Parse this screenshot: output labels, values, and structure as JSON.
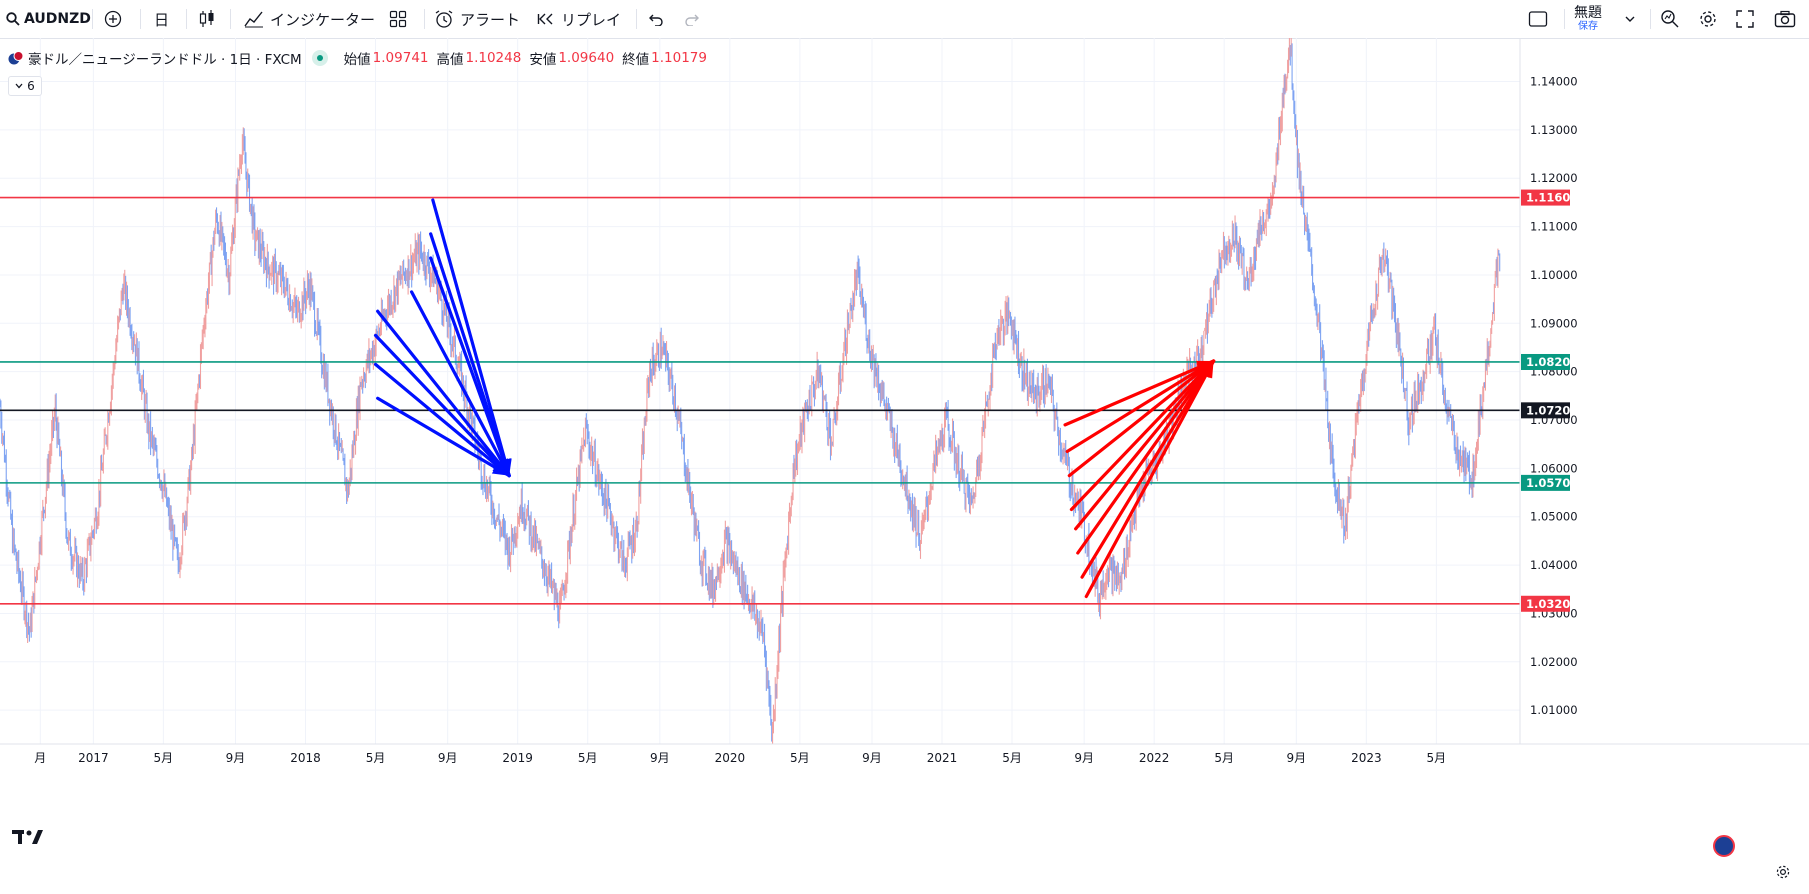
{
  "toolbar": {
    "symbol": "AUDNZD",
    "interval": "日",
    "indicators_label": "インジケーター",
    "alert_label": "アラート",
    "replay_label": "リプレイ",
    "layout_name": "無題",
    "save_label": "保存"
  },
  "legend": {
    "title": "豪ドル／ニュージーランドドル · 1日 · FXCM",
    "open_label": "始値",
    "open": "1.09741",
    "high_label": "高値",
    "high": "1.10248",
    "low_label": "安値",
    "low": "1.09640",
    "close_label": "終値",
    "close": "1.10179",
    "collapse_count": "6"
  },
  "colors": {
    "accent": "#2962ff",
    "down": "#f23645",
    "up": "#089981",
    "candle_up": "#7ea3f2",
    "candle_down": "#f0a0a0",
    "blue_arrow": "#0010ff",
    "red_arrow": "#ff0000"
  },
  "chart_data": {
    "type": "line",
    "symbol": "AUDNZD",
    "ylim": [
      1.003,
      1.149
    ],
    "y_ticks": [
      1.01,
      1.02,
      1.03,
      1.04,
      1.05,
      1.06,
      1.07,
      1.08,
      1.09,
      1.1,
      1.11,
      1.12,
      1.13,
      1.14
    ],
    "y_tick_labels": [
      "1.01000",
      "1.02000",
      "1.03000",
      "1.04000",
      "1.05000",
      "1.06000",
      "1.07000",
      "1.08000",
      "1.09000",
      "1.10000",
      "1.11000",
      "1.12000",
      "1.13000",
      "1.14000"
    ],
    "x_labels": [
      {
        "t": 2016.75,
        "label": "月"
      },
      {
        "t": 2017.0,
        "label": "2017"
      },
      {
        "t": 2017.33,
        "label": "5月"
      },
      {
        "t": 2017.67,
        "label": "9月"
      },
      {
        "t": 2018.0,
        "label": "2018"
      },
      {
        "t": 2018.33,
        "label": "5月"
      },
      {
        "t": 2018.67,
        "label": "9月"
      },
      {
        "t": 2019.0,
        "label": "2019"
      },
      {
        "t": 2019.33,
        "label": "5月"
      },
      {
        "t": 2019.67,
        "label": "9月"
      },
      {
        "t": 2020.0,
        "label": "2020"
      },
      {
        "t": 2020.33,
        "label": "5月"
      },
      {
        "t": 2020.67,
        "label": "9月"
      },
      {
        "t": 2021.0,
        "label": "2021"
      },
      {
        "t": 2021.33,
        "label": "5月"
      },
      {
        "t": 2021.67,
        "label": "9月"
      },
      {
        "t": 2022.0,
        "label": "2022"
      },
      {
        "t": 2022.33,
        "label": "5月"
      },
      {
        "t": 2022.67,
        "label": "9月"
      },
      {
        "t": 2023.0,
        "label": "2023"
      },
      {
        "t": 2023.33,
        "label": "5月"
      }
    ],
    "xlim": [
      2016.56,
      2023.63
    ],
    "price_path": [
      [
        2016.56,
        1.073
      ],
      [
        2016.62,
        1.045
      ],
      [
        2016.7,
        1.026
      ],
      [
        2016.76,
        1.05
      ],
      [
        2016.82,
        1.072
      ],
      [
        2016.88,
        1.045
      ],
      [
        2016.95,
        1.037
      ],
      [
        2017.02,
        1.052
      ],
      [
        2017.08,
        1.075
      ],
      [
        2017.14,
        1.098
      ],
      [
        2017.2,
        1.085
      ],
      [
        2017.26,
        1.068
      ],
      [
        2017.33,
        1.056
      ],
      [
        2017.4,
        1.04
      ],
      [
        2017.46,
        1.06
      ],
      [
        2017.52,
        1.09
      ],
      [
        2017.58,
        1.112
      ],
      [
        2017.64,
        1.1
      ],
      [
        2017.7,
        1.128
      ],
      [
        2017.76,
        1.108
      ],
      [
        2017.82,
        1.102
      ],
      [
        2017.9,
        1.098
      ],
      [
        2017.96,
        1.092
      ],
      [
        2018.02,
        1.098
      ],
      [
        2018.08,
        1.082
      ],
      [
        2018.14,
        1.068
      ],
      [
        2018.2,
        1.055
      ],
      [
        2018.26,
        1.078
      ],
      [
        2018.32,
        1.085
      ],
      [
        2018.38,
        1.093
      ],
      [
        2018.46,
        1.1
      ],
      [
        2018.54,
        1.105
      ],
      [
        2018.62,
        1.098
      ],
      [
        2018.7,
        1.085
      ],
      [
        2018.78,
        1.07
      ],
      [
        2018.84,
        1.058
      ],
      [
        2018.9,
        1.05
      ],
      [
        2018.96,
        1.043
      ],
      [
        2019.02,
        1.053
      ],
      [
        2019.08,
        1.045
      ],
      [
        2019.14,
        1.038
      ],
      [
        2019.2,
        1.03
      ],
      [
        2019.26,
        1.05
      ],
      [
        2019.32,
        1.068
      ],
      [
        2019.38,
        1.058
      ],
      [
        2019.44,
        1.05
      ],
      [
        2019.5,
        1.04
      ],
      [
        2019.56,
        1.048
      ],
      [
        2019.62,
        1.08
      ],
      [
        2019.68,
        1.085
      ],
      [
        2019.74,
        1.075
      ],
      [
        2019.8,
        1.058
      ],
      [
        2019.86,
        1.042
      ],
      [
        2019.92,
        1.035
      ],
      [
        2019.98,
        1.045
      ],
      [
        2020.04,
        1.038
      ],
      [
        2020.1,
        1.032
      ],
      [
        2020.16,
        1.025
      ],
      [
        2020.2,
        1.005
      ],
      [
        2020.24,
        1.03
      ],
      [
        2020.3,
        1.06
      ],
      [
        2020.36,
        1.072
      ],
      [
        2020.42,
        1.08
      ],
      [
        2020.48,
        1.065
      ],
      [
        2020.54,
        1.085
      ],
      [
        2020.6,
        1.1
      ],
      [
        2020.66,
        1.085
      ],
      [
        2020.72,
        1.075
      ],
      [
        2020.78,
        1.065
      ],
      [
        2020.84,
        1.055
      ],
      [
        2020.9,
        1.045
      ],
      [
        2020.96,
        1.06
      ],
      [
        2021.02,
        1.07
      ],
      [
        2021.08,
        1.06
      ],
      [
        2021.14,
        1.052
      ],
      [
        2021.2,
        1.07
      ],
      [
        2021.26,
        1.088
      ],
      [
        2021.32,
        1.092
      ],
      [
        2021.38,
        1.08
      ],
      [
        2021.44,
        1.075
      ],
      [
        2021.5,
        1.078
      ],
      [
        2021.56,
        1.065
      ],
      [
        2021.62,
        1.055
      ],
      [
        2021.66,
        1.05
      ],
      [
        2021.7,
        1.042
      ],
      [
        2021.74,
        1.033
      ],
      [
        2021.78,
        1.04
      ],
      [
        2021.84,
        1.036
      ],
      [
        2021.9,
        1.05
      ],
      [
        2021.96,
        1.058
      ],
      [
        2022.02,
        1.062
      ],
      [
        2022.08,
        1.07
      ],
      [
        2022.14,
        1.078
      ],
      [
        2022.2,
        1.082
      ],
      [
        2022.26,
        1.092
      ],
      [
        2022.32,
        1.105
      ],
      [
        2022.38,
        1.108
      ],
      [
        2022.44,
        1.098
      ],
      [
        2022.5,
        1.11
      ],
      [
        2022.56,
        1.115
      ],
      [
        2022.6,
        1.135
      ],
      [
        2022.64,
        1.148
      ],
      [
        2022.68,
        1.122
      ],
      [
        2022.72,
        1.108
      ],
      [
        2022.78,
        1.088
      ],
      [
        2022.84,
        1.06
      ],
      [
        2022.9,
        1.048
      ],
      [
        2022.96,
        1.072
      ],
      [
        2023.02,
        1.09
      ],
      [
        2023.08,
        1.105
      ],
      [
        2023.14,
        1.09
      ],
      [
        2023.2,
        1.07
      ],
      [
        2023.26,
        1.078
      ],
      [
        2023.32,
        1.088
      ],
      [
        2023.38,
        1.072
      ],
      [
        2023.44,
        1.062
      ],
      [
        2023.5,
        1.058
      ],
      [
        2023.56,
        1.08
      ],
      [
        2023.62,
        1.102
      ]
    ],
    "horizontal_lines": [
      {
        "price": 1.116,
        "label": "1.11600",
        "color": "#f23645"
      },
      {
        "price": 1.082,
        "label": "1.08200",
        "color": "#089981"
      },
      {
        "price": 1.072,
        "label": "1.07200",
        "color": "#131722"
      },
      {
        "price": 1.057,
        "label": "1.05700",
        "color": "#089981"
      },
      {
        "price": 1.032,
        "label": "1.03200",
        "color": "#f23645"
      }
    ],
    "blue_arrows": {
      "target": [
        2018.96,
        1.0585
      ],
      "sources": [
        [
          2018.6,
          1.1155
        ],
        [
          2018.59,
          1.1085
        ],
        [
          2018.59,
          1.1035
        ],
        [
          2018.5,
          1.0965
        ],
        [
          2018.34,
          1.0925
        ],
        [
          2018.33,
          1.0875
        ],
        [
          2018.33,
          1.0815
        ],
        [
          2018.34,
          1.0745
        ]
      ]
    },
    "red_arrows": {
      "target": [
        2022.28,
        1.0822
      ],
      "sources": [
        [
          2021.58,
          1.069
        ],
        [
          2021.59,
          1.0635
        ],
        [
          2021.6,
          1.0585
        ],
        [
          2021.61,
          1.0515
        ],
        [
          2021.63,
          1.0475
        ],
        [
          2021.64,
          1.0425
        ],
        [
          2021.66,
          1.0375
        ],
        [
          2021.68,
          1.0335
        ]
      ]
    }
  }
}
